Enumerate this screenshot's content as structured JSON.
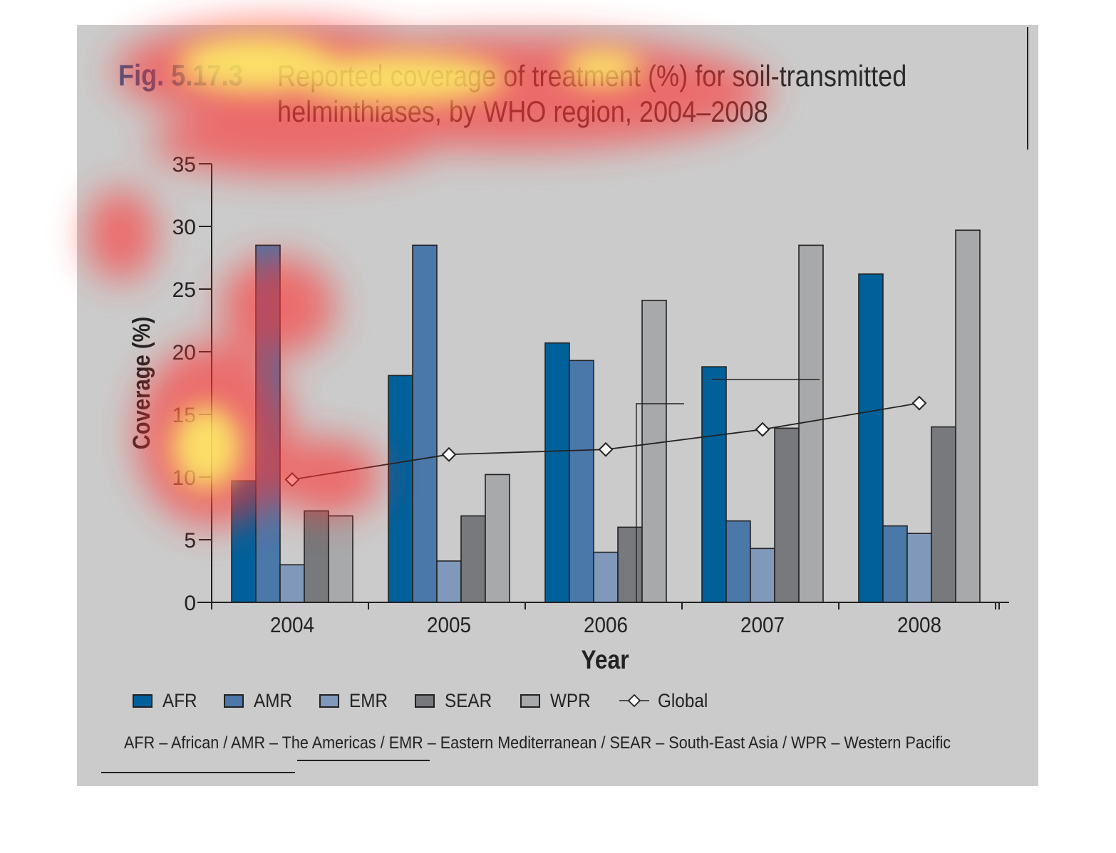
{
  "figure": {
    "label": "Fig. 5.17.3",
    "title_lines": [
      "Reported coverage of treatment (%) for soil-transmitted",
      "helminthiases, by WHO region, 2004–2008"
    ]
  },
  "footnote": "AFR – African / AMR – The Americas / EMR – Eastern Mediterranean / SEAR – South-East Asia / WPR – Western Pacific",
  "colors": {
    "panel": "#cbcbcb",
    "heatmap_overlay": [
      "#ffff66",
      "#ff3333"
    ]
  },
  "chart_data": {
    "type": "bar",
    "title": "Reported coverage of treatment (%) for soil-transmitted helminthiases, by WHO region, 2004–2008",
    "xlabel": "Year",
    "ylabel": "Coverage (%)",
    "ylim": [
      0,
      35
    ],
    "yticks": [
      0,
      5,
      10,
      15,
      20,
      25,
      30,
      35
    ],
    "grid": false,
    "legend_position": "bottom",
    "categories": [
      "2004",
      "2005",
      "2006",
      "2007",
      "2008"
    ],
    "series": [
      {
        "name": "AFR",
        "color": "#00619a",
        "values": [
          9.7,
          18.1,
          20.7,
          18.8,
          26.2
        ]
      },
      {
        "name": "AMR",
        "color": "#4a78a9",
        "values": [
          28.5,
          28.5,
          19.3,
          6.5,
          6.1
        ]
      },
      {
        "name": "EMR",
        "color": "#8099ba",
        "values": [
          3.0,
          3.3,
          4.0,
          4.3,
          5.5
        ]
      },
      {
        "name": "SEAR",
        "color": "#77797c",
        "values": [
          7.3,
          6.9,
          6.0,
          13.9,
          14.0
        ]
      },
      {
        "name": "WPR",
        "color": "#a8a9ab",
        "values": [
          6.9,
          10.2,
          24.1,
          28.5,
          29.7
        ]
      }
    ],
    "line_series": {
      "name": "Global",
      "marker": "diamond",
      "values": [
        9.8,
        11.8,
        12.2,
        13.8,
        15.9
      ]
    }
  }
}
